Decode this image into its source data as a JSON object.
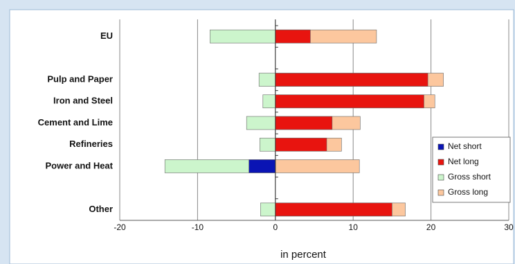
{
  "chart_data": {
    "type": "bar",
    "orientation": "horizontal",
    "categories": [
      "EU",
      null,
      "Pulp and Paper",
      "Iron and Steel",
      "Cement and Lime",
      "Refineries",
      "Power and Heat",
      null,
      "Other"
    ],
    "series": [
      {
        "name": "Net short",
        "color": "#0a14b4",
        "values": [
          null,
          null,
          null,
          null,
          null,
          null,
          -3.4,
          null,
          null
        ]
      },
      {
        "name": "Net long",
        "color": "#e8140f",
        "values": [
          4.5,
          null,
          19.6,
          19.1,
          7.3,
          6.6,
          null,
          null,
          15.0
        ]
      },
      {
        "name": "Gross short",
        "color": "#ccf5cc",
        "values": [
          -8.4,
          null,
          -2.1,
          -1.6,
          -3.7,
          -2.0,
          -14.2,
          null,
          -1.9
        ]
      },
      {
        "name": "Gross long",
        "color": "#fcc79e",
        "values": [
          13.0,
          null,
          21.6,
          20.5,
          10.9,
          8.5,
          10.8,
          null,
          16.7
        ]
      }
    ],
    "xlabel": "in percent",
    "xlim": [
      -20,
      30
    ],
    "xticks": [
      -20,
      -10,
      0,
      10,
      20,
      30
    ],
    "grid": true,
    "legend": "lower right"
  }
}
